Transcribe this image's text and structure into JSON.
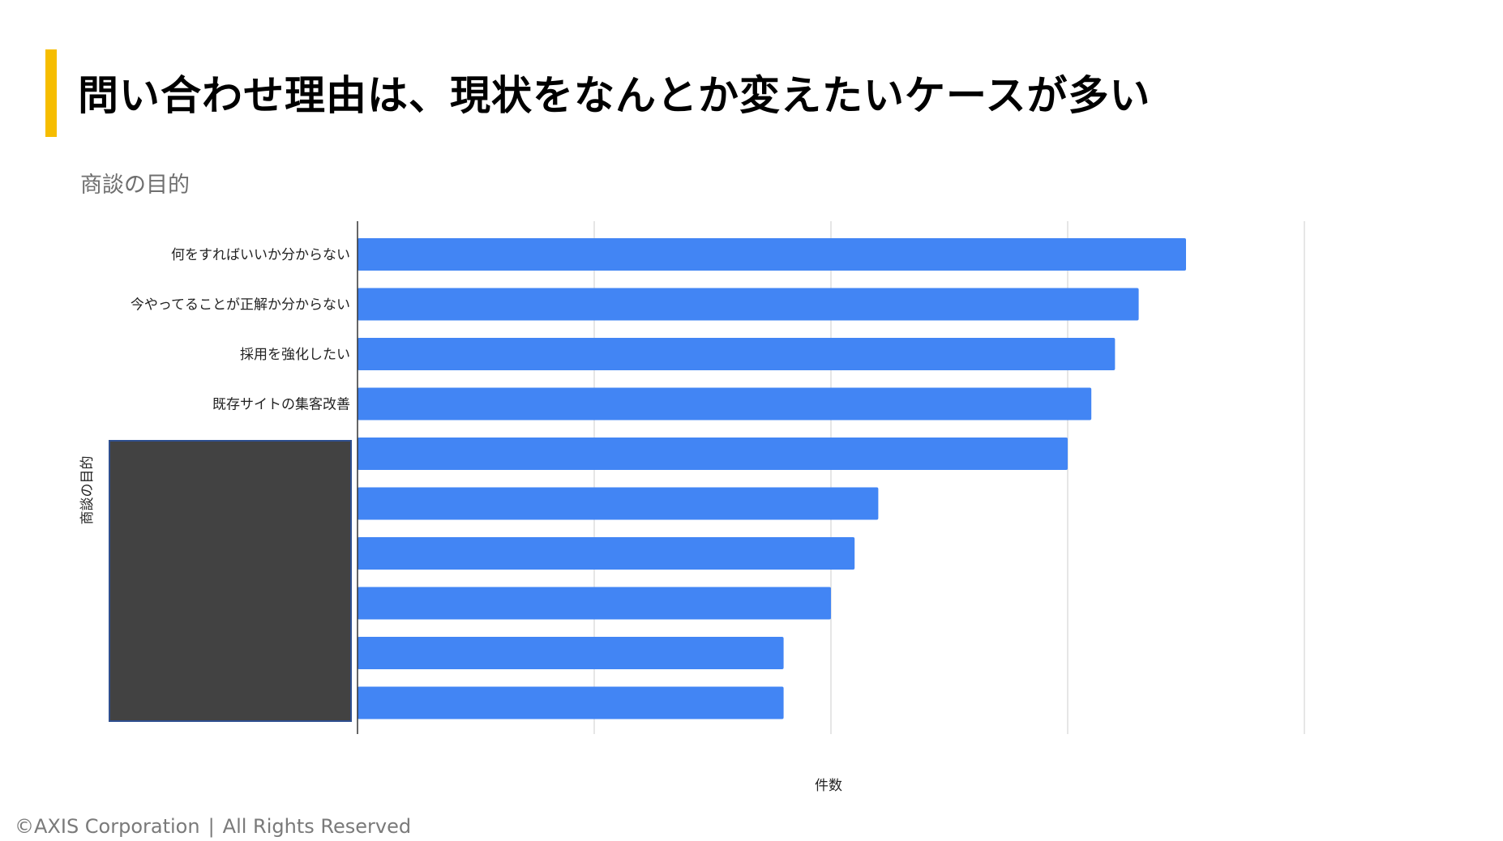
{
  "slide": {
    "title": "問い合わせ理由は、現状をなんとか変えたいケースが多い",
    "accent_color": "#f6bd00"
  },
  "chart_data": {
    "type": "bar",
    "orientation": "horizontal",
    "title": "商談の目的",
    "xlabel": "件数",
    "ylabel": "商談の目的",
    "categories": [
      "何をすればいいか分からない",
      "今やってることが正解か分からない",
      "採用を強化したい",
      "既存サイトの集客改善",
      "",
      "",
      "",
      "",
      "",
      ""
    ],
    "values": [
      35,
      33,
      32,
      31,
      30,
      22,
      21,
      20,
      18,
      18
    ],
    "xlim": [
      0,
      40
    ],
    "x_gridlines": [
      0,
      10,
      20,
      30,
      40
    ],
    "bar_color": "#4285f4",
    "grid": true,
    "legend": "none"
  },
  "footer": {
    "copyright": "©AXIS Corporation",
    "separator": "|",
    "rights": "All Rights Reserved"
  }
}
